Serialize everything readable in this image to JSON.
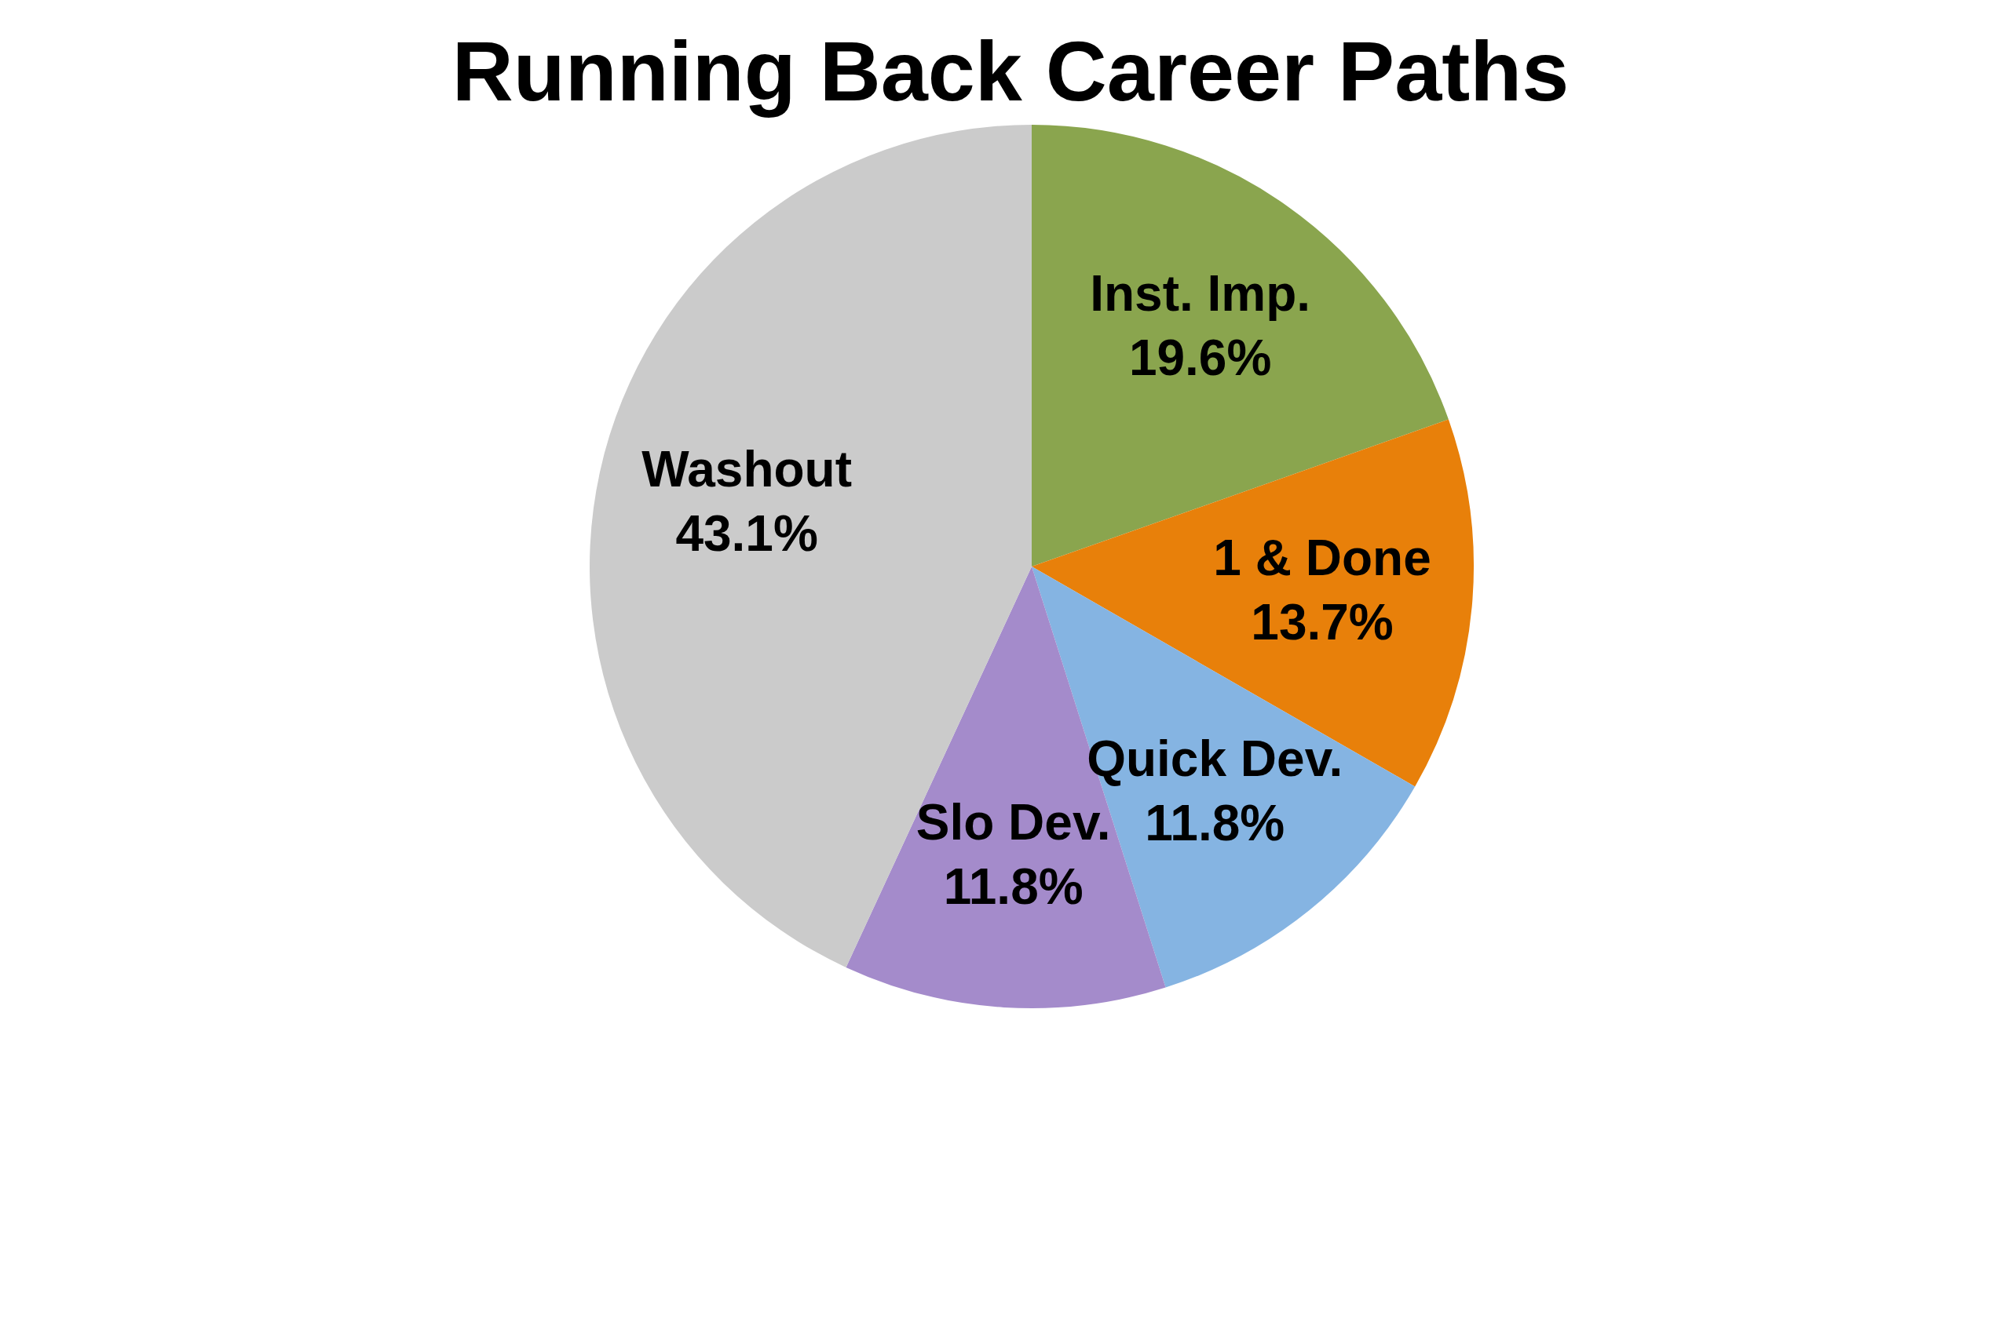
{
  "chart_data": {
    "type": "pie",
    "title": "Running Back Career Paths",
    "categories": [
      "Inst. Imp.",
      "1 & Done",
      "Quick Dev.",
      "Slo Dev.",
      "Washout"
    ],
    "values": [
      19.6,
      13.7,
      11.8,
      11.8,
      43.1
    ],
    "value_labels": [
      "19.6%",
      "13.7%",
      "11.8%",
      "11.8%",
      "43.1%"
    ],
    "colors": [
      "#8aa54e",
      "#e8800a",
      "#85b4e2",
      "#a48bcb",
      "#cbcbcb"
    ],
    "legend": false
  }
}
